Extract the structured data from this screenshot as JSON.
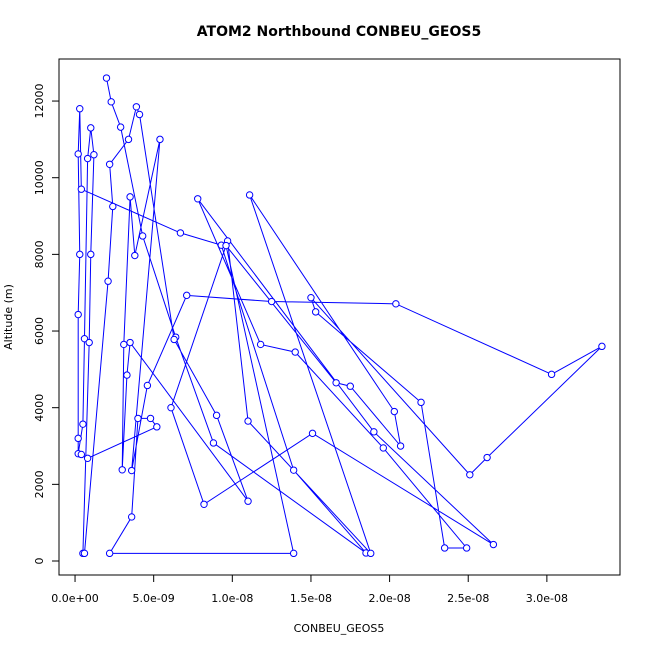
{
  "chart_data": {
    "type": "line",
    "markers": true,
    "title": "ATOM2 Northbound CONBEU_GEOS5",
    "xlabel": "CONBEU_GEOS5",
    "ylabel": "Altitude (m)",
    "xlim": [
      -1.02e-09,
      3.465e-08
    ],
    "ylim": [
      -365,
      13097
    ],
    "xticks": [
      {
        "value": 0,
        "label": "0.0e+00"
      },
      {
        "value": 5e-09,
        "label": "5.0e-09"
      },
      {
        "value": 1e-08,
        "label": "1.0e-08"
      },
      {
        "value": 1.5e-08,
        "label": "1.5e-08"
      },
      {
        "value": 2e-08,
        "label": "2.0e-08"
      },
      {
        "value": 2.5e-08,
        "label": "2.5e-08"
      },
      {
        "value": 3e-08,
        "label": "3.0e-08"
      }
    ],
    "yticks": [
      0,
      2000,
      4000,
      6000,
      8000,
      10000,
      12000
    ],
    "x": [
      2e-09,
      2.3e-09,
      2.9e-09,
      4.3e-09,
      6.4e-09,
      8.8e-09,
      1.85e-08,
      1.39e-08,
      9.3e-09,
      6.7e-09,
      4e-10,
      3e-10,
      2e-10,
      3e-10,
      2e-10,
      2e-10,
      2e-10,
      5e-10,
      6e-10,
      8e-10,
      1e-09,
      1.2e-09,
      1e-09,
      9e-10,
      5e-10,
      6e-10,
      2.1e-09,
      2.4e-09,
      2.2e-09,
      3.4e-09,
      3.9e-09,
      4.1e-09,
      6.3e-09,
      9e-09,
      1.1e-08,
      3.5e-09,
      3.3e-09,
      3e-09,
      3.1e-09,
      3.5e-09,
      3.8e-09,
      5.4e-09,
      3.6e-09,
      4.6e-09,
      7.1e-09,
      1.25e-08,
      2.04e-08,
      3.03e-08,
      3.35e-08,
      2.62e-08,
      2.51e-08,
      1.5e-08,
      1.53e-08,
      2.2e-08,
      2.35e-08,
      2.49e-08,
      1.96e-08,
      1.4e-08,
      1.18e-08,
      7.8e-09,
      1.9e-08,
      2.66e-08,
      1.51e-08,
      8.2e-09,
      6.1e-09,
      9.7e-09,
      1.1e-08,
      1.88e-08,
      1.11e-08,
      2.03e-08,
      2.07e-08,
      1.75e-08,
      1.66e-08,
      9.6e-09,
      1.39e-08,
      2.2e-09,
      3.6e-09,
      4e-09,
      4.8e-09,
      5.2e-09,
      8e-10,
      4e-10
    ],
    "series": [
      {
        "color": "#0000ff",
        "values": [
          12600,
          11980,
          11320,
          8480,
          5840,
          3080,
          210,
          2370,
          8240,
          8560,
          9700,
          11800,
          10620,
          8000,
          6430,
          3200,
          2800,
          3570,
          5800,
          10500,
          11300,
          10600,
          8000,
          5700,
          200,
          200,
          7300,
          9250,
          10350,
          11000,
          11850,
          11650,
          5780,
          3800,
          1560,
          5700,
          4850,
          2380,
          5650,
          9500,
          7970,
          11000,
          2360,
          4580,
          6930,
          6770,
          6710,
          4870,
          5600,
          2700,
          2250,
          6870,
          6500,
          4140,
          340,
          340,
          2950,
          5450,
          5650,
          9450,
          3370,
          430,
          3330,
          1480,
          4000,
          8350,
          3650,
          200,
          9550,
          3900,
          3000,
          4560,
          4650,
          8230,
          200,
          200,
          1150,
          3720,
          3720,
          3500,
          2680,
          2780
        ]
      }
    ]
  }
}
